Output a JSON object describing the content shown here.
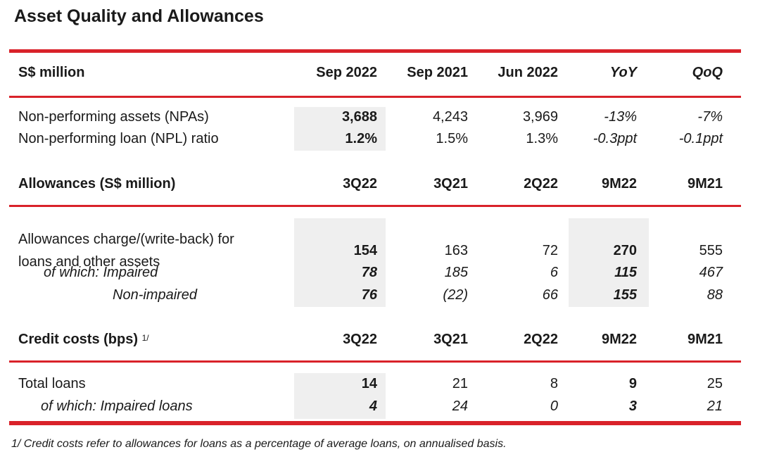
{
  "title": "Asset Quality and Allowances",
  "accent_color": "#d9222a",
  "sections": [
    {
      "header": {
        "label": "S$ million",
        "columns": [
          "Sep 2022",
          "Sep 2021",
          "Jun 2022",
          "YoY",
          "QoQ"
        ]
      },
      "rows": [
        {
          "label": "Non-performing assets (NPAs)",
          "values": [
            "3,688",
            "4,243",
            "3,969",
            "-13%",
            "-7%"
          ]
        },
        {
          "label": "Non-performing loan (NPL) ratio",
          "values": [
            "1.2%",
            "1.5%",
            "1.3%",
            "-0.3ppt",
            "-0.1ppt"
          ]
        }
      ]
    },
    {
      "header": {
        "label": "Allowances (S$ million)",
        "columns": [
          "3Q22",
          "3Q21",
          "2Q22",
          "9M22",
          "9M21"
        ]
      },
      "rows": [
        {
          "label": "Allowances charge/(write-back) for",
          "label2": "loans and other assets",
          "values": [
            "154",
            "163",
            "72",
            "270",
            "555"
          ]
        },
        {
          "label": "of which: Impaired",
          "values": [
            "78",
            "185",
            "6",
            "115",
            "467"
          ]
        },
        {
          "label": "Non-impaired",
          "values": [
            "76",
            "(22)",
            "66",
            "155",
            "88"
          ]
        }
      ]
    },
    {
      "header": {
        "label": "Credit costs (bps)",
        "footnote_ref": "1/",
        "columns": [
          "3Q22",
          "3Q21",
          "2Q22",
          "9M22",
          "9M21"
        ]
      },
      "rows": [
        {
          "label": "Total loans",
          "values": [
            "14",
            "21",
            "8",
            "9",
            "25"
          ]
        },
        {
          "label": "of which: Impaired loans",
          "values": [
            "4",
            "24",
            "0",
            "3",
            "21"
          ]
        }
      ]
    }
  ],
  "footnote": "1/  Credit costs refer to allowances for loans as a percentage of average loans, on annualised basis."
}
